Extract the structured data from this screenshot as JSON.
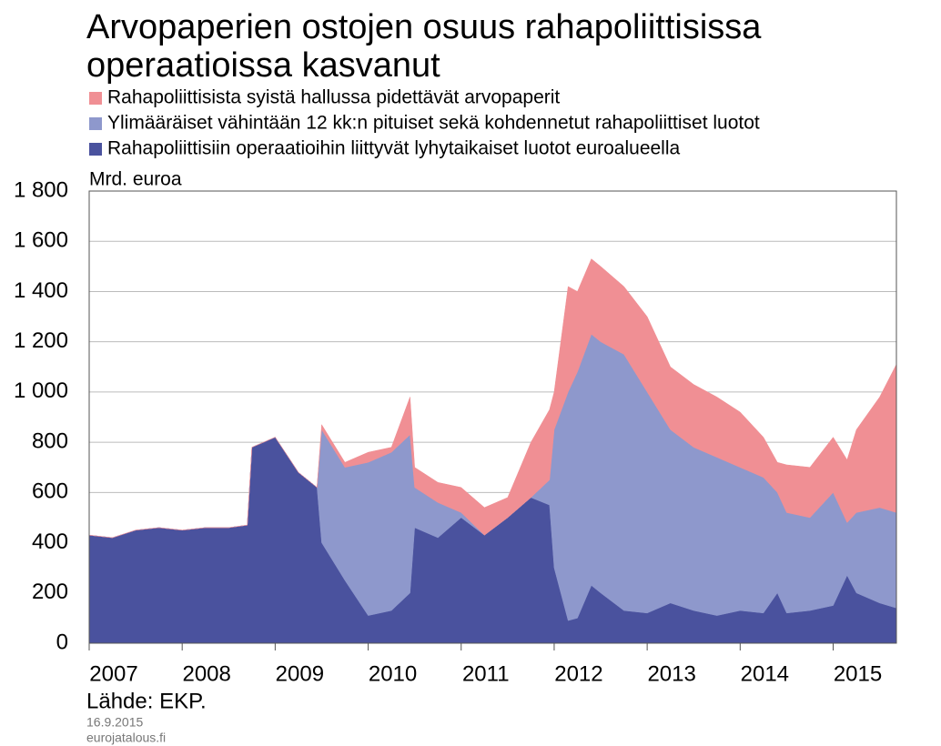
{
  "chart_data": {
    "type": "stacked_area",
    "title": [
      "Arvopaperien ostojen osuus rahapoliittisissa",
      "operaatioissa kasvanut"
    ],
    "y_label": "Mrd. euroa",
    "source": "Lähde: EKP.",
    "date": "16.9.2015",
    "site": "eurojatalous.fi",
    "x": [
      2007,
      2007.25,
      2007.5,
      2007.75,
      2008,
      2008.25,
      2008.5,
      2008.7,
      2008.75,
      2009,
      2009.25,
      2009.45,
      2009.5,
      2009.75,
      2010,
      2010.25,
      2010.45,
      2010.5,
      2010.75,
      2011,
      2011.25,
      2011.5,
      2011.75,
      2011.95,
      2012,
      2012.15,
      2012.25,
      2012.4,
      2012.5,
      2012.75,
      2013,
      2013.25,
      2013.5,
      2013.75,
      2014,
      2014.25,
      2014.4,
      2014.5,
      2014.75,
      2015,
      2015.15,
      2015.25,
      2015.5,
      2015.68
    ],
    "series": [
      {
        "name": "Rahapoliittisiin operaatioihin liittyvät lyhytaikaiset luotot euroalueella",
        "color": "#4a529e",
        "values": [
          430,
          420,
          450,
          460,
          450,
          460,
          460,
          470,
          780,
          820,
          680,
          620,
          400,
          250,
          110,
          130,
          200,
          460,
          420,
          500,
          430,
          500,
          580,
          550,
          300,
          90,
          100,
          230,
          200,
          130,
          120,
          160,
          130,
          110,
          130,
          120,
          200,
          120,
          130,
          150,
          270,
          200,
          160,
          140
        ]
      },
      {
        "name": "Ylimääräiset vähintään 12 kk:n pituiset sekä kohdennetut rahapoliittiset luotot",
        "color": "#8e98cc",
        "values": [
          0,
          0,
          0,
          0,
          0,
          0,
          0,
          0,
          0,
          0,
          0,
          0,
          450,
          450,
          610,
          630,
          630,
          160,
          140,
          20,
          0,
          0,
          0,
          100,
          550,
          910,
          980,
          1000,
          1000,
          1020,
          880,
          690,
          650,
          630,
          570,
          540,
          400,
          400,
          370,
          450,
          210,
          320,
          380,
          380
        ]
      },
      {
        "name": "Rahapoliittisista syistä hallussa pidettävät arvopaperit",
        "color": "#f08f94",
        "values": [
          0,
          0,
          0,
          0,
          0,
          0,
          0,
          0,
          0,
          0,
          0,
          0,
          20,
          20,
          40,
          20,
          150,
          80,
          80,
          100,
          110,
          80,
          220,
          280,
          150,
          420,
          320,
          300,
          300,
          270,
          300,
          250,
          250,
          240,
          220,
          160,
          120,
          190,
          200,
          220,
          250,
          330,
          440,
          590
        ]
      }
    ],
    "xlim": [
      2007,
      2015.68
    ],
    "xticks": [
      2007,
      2008,
      2009,
      2010,
      2011,
      2012,
      2013,
      2014,
      2015
    ],
    "ylim": [
      0,
      1800
    ],
    "yticks": [
      0,
      200,
      400,
      600,
      800,
      {
        "value": 1000,
        "label": "1 000"
      },
      {
        "value": 1200,
        "label": "1 200"
      },
      {
        "value": 1400,
        "label": "1 400"
      },
      {
        "value": 1600,
        "label": "1 600"
      },
      {
        "value": 1800,
        "label": "1 800"
      }
    ],
    "grid": true
  }
}
